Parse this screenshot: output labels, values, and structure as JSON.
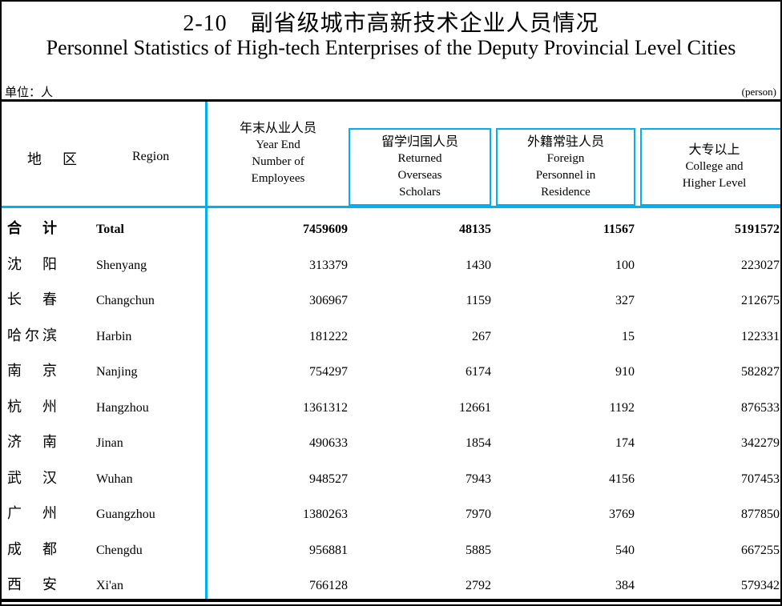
{
  "page": {
    "title_zh": "2-10　副省级城市高新技术企业人员情况",
    "title_en": "Personnel Statistics of High-tech Enterprises of the Deputy Provincial Level Cities",
    "unit_note_zh": "单位：人",
    "unit_note_en": "(person)"
  },
  "colors": {
    "accent_cyan": "#00b0f0",
    "line_black": "#000000"
  },
  "table": {
    "region_header": {
      "zh": "地区",
      "en": "Region"
    },
    "columns": [
      {
        "zh": "年末从业人员",
        "en_lines": [
          "Year End",
          "Number of",
          "Employees"
        ],
        "boxed": false
      },
      {
        "zh": "留学归国人员",
        "en_lines": [
          "Returned",
          "Overseas",
          "Scholars"
        ],
        "boxed": true
      },
      {
        "zh": "外籍常驻人员",
        "en_lines": [
          "Foreign",
          "Personnel in",
          "Residence"
        ],
        "boxed": true
      },
      {
        "zh": "大专以上",
        "en_lines": [
          "College and",
          "Higher Level"
        ],
        "boxed": true
      }
    ],
    "rows": [
      {
        "zh": "合计",
        "en": "Total",
        "bold": true,
        "values": [
          "7459609",
          "48135",
          "11567",
          "5191572"
        ]
      },
      {
        "zh": "沈阳",
        "en": "Shenyang",
        "bold": false,
        "values": [
          "313379",
          "1430",
          "100",
          "223027"
        ]
      },
      {
        "zh": "长春",
        "en": "Changchun",
        "bold": false,
        "values": [
          "306967",
          "1159",
          "327",
          "212675"
        ]
      },
      {
        "zh": "哈尔滨",
        "en": "Harbin",
        "bold": false,
        "values": [
          "181222",
          "267",
          "15",
          "122331"
        ]
      },
      {
        "zh": "南京",
        "en": "Nanjing",
        "bold": false,
        "values": [
          "754297",
          "6174",
          "910",
          "582827"
        ]
      },
      {
        "zh": "杭州",
        "en": "Hangzhou",
        "bold": false,
        "values": [
          "1361312",
          "12661",
          "1192",
          "876533"
        ]
      },
      {
        "zh": "济南",
        "en": "Jinan",
        "bold": false,
        "values": [
          "490633",
          "1854",
          "174",
          "342279"
        ]
      },
      {
        "zh": "武汉",
        "en": "Wuhan",
        "bold": false,
        "values": [
          "948527",
          "7943",
          "4156",
          "707453"
        ]
      },
      {
        "zh": "广州",
        "en": "Guangzhou",
        "bold": false,
        "values": [
          "1380263",
          "7970",
          "3769",
          "877850"
        ]
      },
      {
        "zh": "成都",
        "en": "Chengdu",
        "bold": false,
        "values": [
          "956881",
          "5885",
          "540",
          "667255"
        ]
      },
      {
        "zh": "西安",
        "en": "Xi'an",
        "bold": false,
        "values": [
          "766128",
          "2792",
          "384",
          "579342"
        ]
      }
    ]
  }
}
